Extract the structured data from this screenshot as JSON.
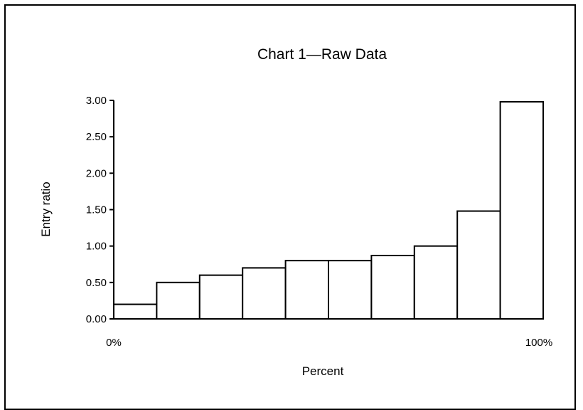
{
  "chart_data": {
    "type": "bar",
    "title": "Chart 1—Raw Data",
    "xlabel": "Percent",
    "ylabel": "Entry ratio",
    "x_tick_labels": [
      "0%",
      "100%"
    ],
    "y_tick_labels": [
      "0.00",
      "0.50",
      "1.00",
      "1.50",
      "2.00",
      "2.50",
      "3.00"
    ],
    "y_ticks": [
      0,
      0.5,
      1.0,
      1.5,
      2.0,
      2.5,
      3.0
    ],
    "ylim": [
      0,
      3.0
    ],
    "xlim": [
      0,
      100
    ],
    "grid": false,
    "bin_width": 10,
    "values": [
      0.2,
      0.5,
      0.6,
      0.7,
      0.8,
      0.8,
      0.87,
      1.0,
      1.48,
      2.98
    ],
    "bar_fill": "#ffffff",
    "bar_stroke": "#000000"
  }
}
